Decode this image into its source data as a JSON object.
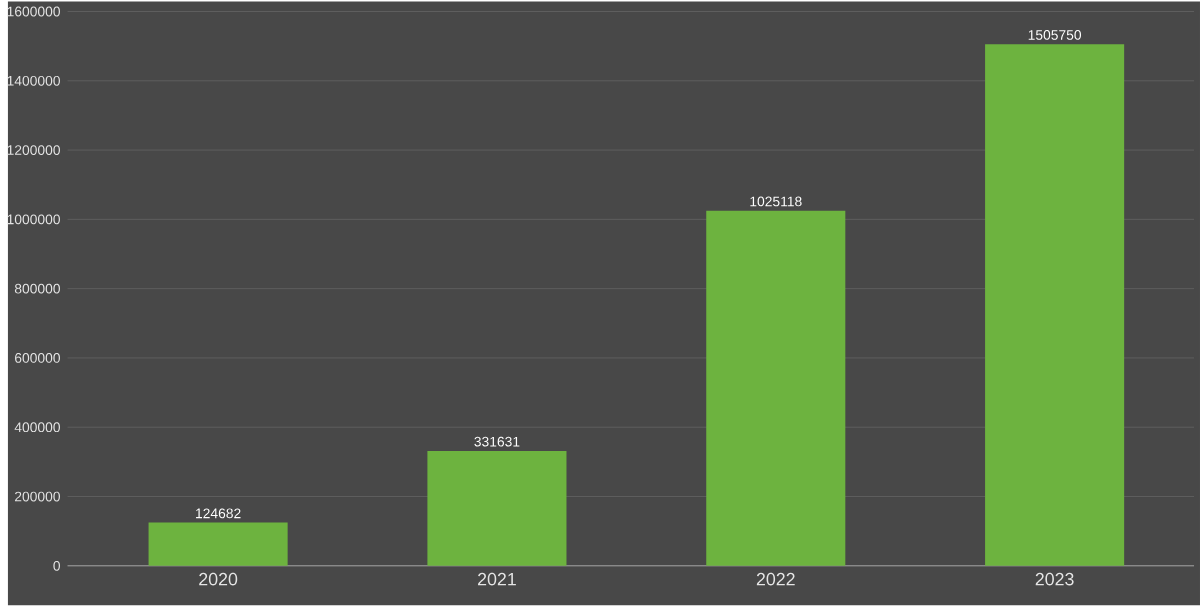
{
  "chart_data": {
    "type": "bar",
    "categories": [
      "2020",
      "2021",
      "2022",
      "2023"
    ],
    "values": [
      124682,
      331631,
      1025118,
      1505750
    ],
    "color": "#6db33f",
    "ylim": [
      0,
      1600000
    ],
    "yticks": [
      0,
      200000,
      400000,
      600000,
      800000,
      1000000,
      1200000,
      1400000,
      1600000
    ],
    "grid": "y",
    "data_labels": true
  }
}
